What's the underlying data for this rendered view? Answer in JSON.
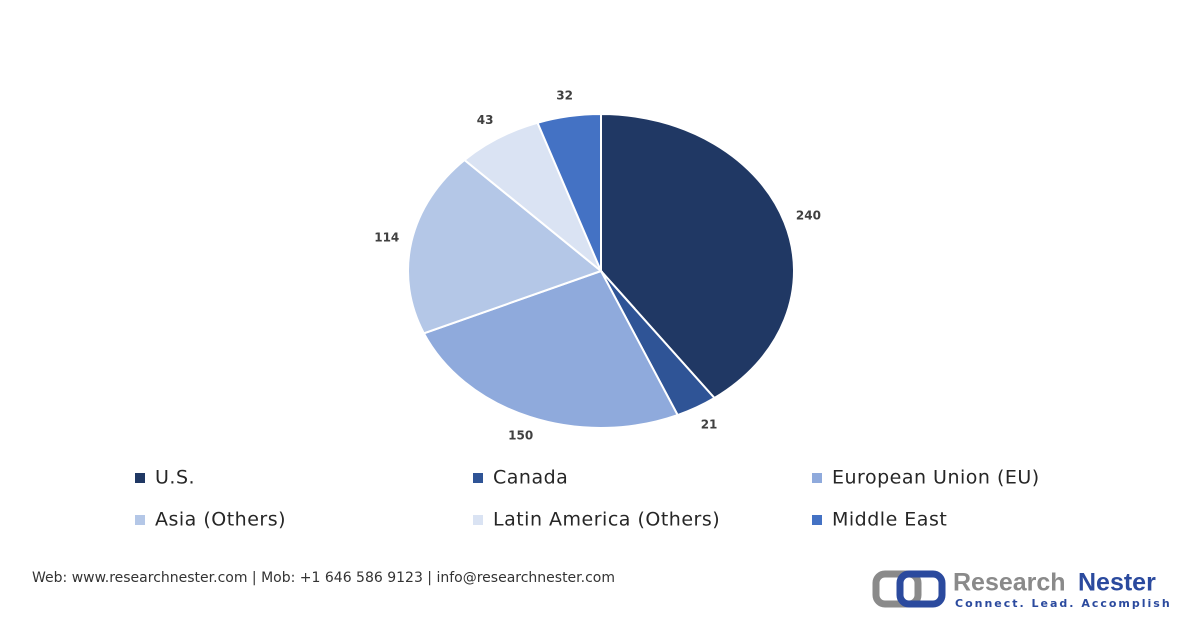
{
  "chart_data": {
    "type": "pie",
    "categories": [
      "U.S.",
      "Canada",
      "European Union (EU)",
      "Asia (Others)",
      "Latin America (Others)",
      "Middle East"
    ],
    "values": [
      240,
      21,
      150,
      114,
      43,
      32
    ],
    "colors": [
      "#203864",
      "#2f5496",
      "#8faadc",
      "#b4c7e7",
      "#dae3f3",
      "#4472c4"
    ]
  },
  "footer": {
    "contact": "Web: www.researchnester.com | Mob: +1 646 586 9123 | info@researchnester.com",
    "logo": {
      "words": [
        "Research",
        "Nester"
      ],
      "tagline": "Connect. Lead. Accomplish"
    }
  }
}
